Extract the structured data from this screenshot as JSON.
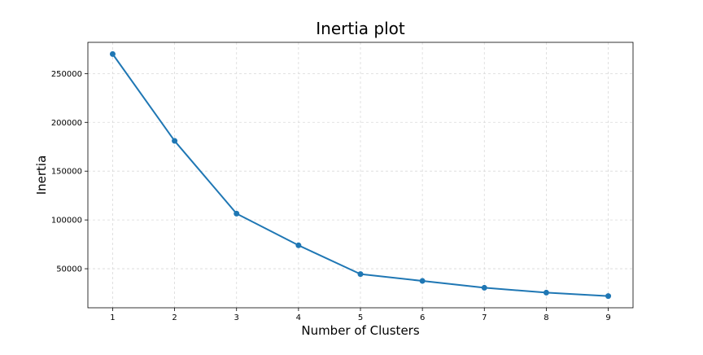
{
  "chart_data": {
    "type": "line",
    "title": "Inertia plot",
    "xlabel": "Number of Clusters",
    "ylabel": "Inertia",
    "x": [
      1,
      2,
      3,
      4,
      5,
      6,
      7,
      8,
      9
    ],
    "series": [
      {
        "name": "Inertia",
        "values": [
          270000,
          181000,
          106500,
          74000,
          44500,
          37500,
          30500,
          25500,
          22000
        ],
        "color": "#1f77b4",
        "marker": "circle"
      }
    ],
    "xlim": [
      0.6,
      9.4
    ],
    "ylim": [
      10000,
      282000
    ],
    "xticks": [
      1,
      2,
      3,
      4,
      5,
      6,
      7,
      8,
      9
    ],
    "yticks": [
      50000,
      100000,
      150000,
      200000,
      250000
    ],
    "grid": true
  }
}
